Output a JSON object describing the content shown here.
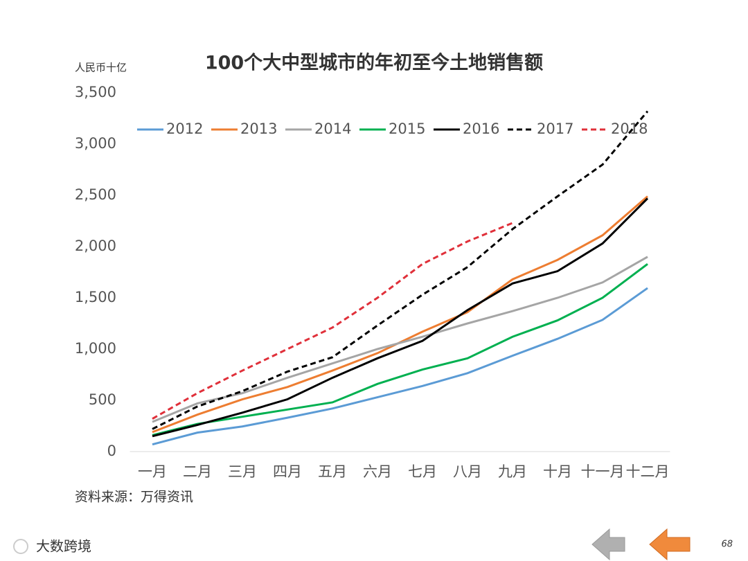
{
  "chart_data": {
    "type": "line",
    "title": "100个大中型城市的年初至今土地销售额",
    "y_label": "人民币十亿",
    "source": "资料来源：万得资讯",
    "page_number": "68",
    "watermark": "大数跨境",
    "categories": [
      "一月",
      "二月",
      "三月",
      "四月",
      "五月",
      "六月",
      "七月",
      "八月",
      "九月",
      "十月",
      "十一月",
      "十二月"
    ],
    "series": [
      {
        "name": "2012",
        "color": "#5b9bd5",
        "style": "solid",
        "values": [
          70,
          185,
          245,
          330,
          420,
          530,
          640,
          765,
          935,
          1100,
          1285,
          1595
        ]
      },
      {
        "name": "2013",
        "color": "#ed7d31",
        "style": "solid",
        "values": [
          190,
          360,
          510,
          630,
          790,
          960,
          1170,
          1360,
          1680,
          1870,
          2110,
          2490
        ]
      },
      {
        "name": "2014",
        "color": "#a5a5a5",
        "style": "solid",
        "values": [
          290,
          470,
          570,
          720,
          860,
          1000,
          1120,
          1250,
          1370,
          1500,
          1650,
          1900
        ]
      },
      {
        "name": "2015",
        "color": "#00b050",
        "style": "solid",
        "values": [
          160,
          270,
          340,
          410,
          480,
          660,
          800,
          910,
          1120,
          1280,
          1500,
          1830
        ]
      },
      {
        "name": "2016",
        "color": "#000000",
        "style": "solid",
        "values": [
          150,
          260,
          380,
          510,
          720,
          910,
          1080,
          1380,
          1640,
          1760,
          2030,
          2470
        ]
      },
      {
        "name": "2017",
        "color": "#000000",
        "style": "dashed",
        "values": [
          220,
          440,
          590,
          780,
          920,
          1230,
          1530,
          1800,
          2170,
          2490,
          2800,
          3320
        ]
      },
      {
        "name": "2018",
        "color": "#e0303a",
        "style": "dashed",
        "values": [
          320,
          570,
          790,
          1000,
          1210,
          1500,
          1830,
          2050,
          2230,
          null,
          null,
          null
        ]
      }
    ],
    "ylim": [
      0,
      3500
    ],
    "yticks": [
      0,
      500,
      {
        "value": 1000,
        "label": "1,000"
      },
      {
        "value": 1500,
        "label": "1,500"
      },
      {
        "value": 2000,
        "label": "2,000"
      },
      {
        "value": 2500,
        "label": "2,500"
      },
      {
        "value": 3000,
        "label": "3,000"
      },
      {
        "value": 3500,
        "label": "3,500"
      }
    ],
    "legend": "top"
  }
}
